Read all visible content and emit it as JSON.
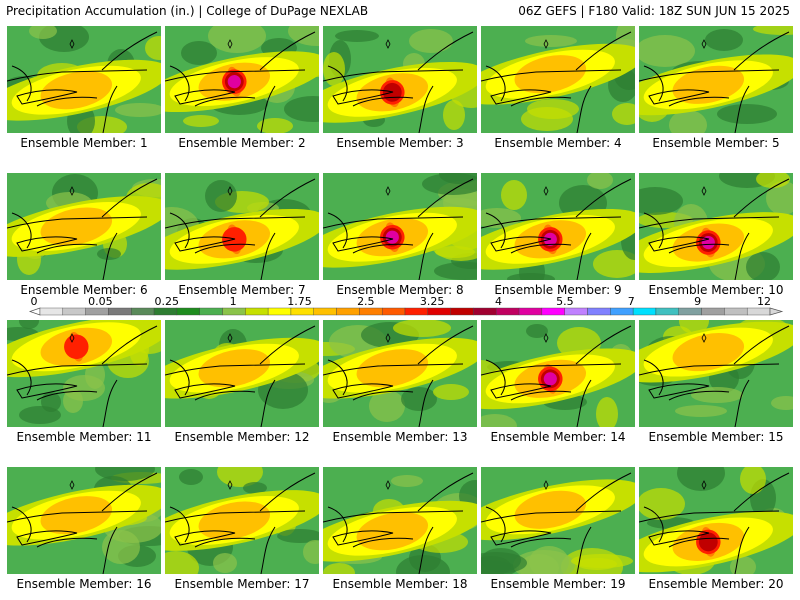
{
  "header": {
    "left_title": "Precipitation Accumulation (in.) | College of DuPage NEXLAB",
    "right_title": "06Z GEFS | F180 Valid: 18Z SUN JUN 15 2025"
  },
  "panels": [
    {
      "member": 1,
      "label": "Ensemble Member: 1",
      "peak": 2,
      "band_lat": 0.6
    },
    {
      "member": 2,
      "label": "Ensemble Member: 2",
      "peak": 6,
      "band_lat": 0.52
    },
    {
      "member": 3,
      "label": "Ensemble Member: 3",
      "peak": 4,
      "band_lat": 0.62
    },
    {
      "member": 4,
      "label": "Ensemble Member: 4",
      "peak": 2,
      "band_lat": 0.45
    },
    {
      "member": 5,
      "label": "Ensemble Member: 5",
      "peak": 1.75,
      "band_lat": 0.55
    },
    {
      "member": 6,
      "label": "Ensemble Member: 6",
      "peak": 1.5,
      "band_lat": 0.5
    },
    {
      "member": 7,
      "label": "Ensemble Member: 7",
      "peak": 3.25,
      "band_lat": 0.62
    },
    {
      "member": 8,
      "label": "Ensemble Member: 8",
      "peak": 5.5,
      "band_lat": 0.6
    },
    {
      "member": 9,
      "label": "Ensemble Member: 9",
      "peak": 5.5,
      "band_lat": 0.62
    },
    {
      "member": 10,
      "label": "Ensemble Member: 10",
      "peak": 5.5,
      "band_lat": 0.65
    },
    {
      "member": 11,
      "label": "Ensemble Member: 11",
      "peak": 3,
      "band_lat": 0.25
    },
    {
      "member": 12,
      "label": "Ensemble Member: 12",
      "peak": 2,
      "band_lat": 0.45
    },
    {
      "member": 13,
      "label": "Ensemble Member: 13",
      "peak": 1.75,
      "band_lat": 0.45
    },
    {
      "member": 14,
      "label": "Ensemble Member: 14",
      "peak": 5,
      "band_lat": 0.55
    },
    {
      "member": 15,
      "label": "Ensemble Member: 15",
      "peak": 1.5,
      "band_lat": 0.3
    },
    {
      "member": 16,
      "label": "Ensemble Member: 16",
      "peak": 2,
      "band_lat": 0.45
    },
    {
      "member": 17,
      "label": "Ensemble Member: 17",
      "peak": 1.5,
      "band_lat": 0.5
    },
    {
      "member": 18,
      "label": "Ensemble Member: 18",
      "peak": 2,
      "band_lat": 0.6
    },
    {
      "member": 19,
      "label": "Ensemble Member: 19",
      "peak": 2,
      "band_lat": 0.4
    },
    {
      "member": 20,
      "label": "Ensemble Member: 20",
      "peak": 4,
      "band_lat": 0.7
    }
  ],
  "colorbar": {
    "unit": "in.",
    "bins": [
      {
        "color": "#e6e6e6"
      },
      {
        "color": "#c8c8c8"
      },
      {
        "color": "#a0a0a0"
      },
      {
        "color": "#7a7a7a"
      },
      {
        "color": "#5a8a5a"
      },
      {
        "color": "#2e7d32"
      },
      {
        "color": "#1e8c1e"
      },
      {
        "color": "#4caf50"
      },
      {
        "color": "#8bc34a"
      },
      {
        "color": "#c6e000"
      },
      {
        "color": "#ffff00"
      },
      {
        "color": "#ffe000"
      },
      {
        "color": "#ffc000"
      },
      {
        "color": "#ffa000"
      },
      {
        "color": "#ff7f00"
      },
      {
        "color": "#ff5a00"
      },
      {
        "color": "#ff2000"
      },
      {
        "color": "#e00000"
      },
      {
        "color": "#c00000"
      },
      {
        "color": "#a00030"
      },
      {
        "color": "#c00060"
      },
      {
        "color": "#e000a0"
      },
      {
        "color": "#ff00ff"
      },
      {
        "color": "#c080ff"
      },
      {
        "color": "#8080ff"
      },
      {
        "color": "#40a0ff"
      },
      {
        "color": "#00e0ff"
      },
      {
        "color": "#40c0c0"
      },
      {
        "color": "#80a0a0"
      },
      {
        "color": "#a0a0a0"
      },
      {
        "color": "#c0c0c0"
      },
      {
        "color": "#d8d8d8"
      }
    ],
    "tick_labels": [
      {
        "text": "0",
        "value": 0
      },
      {
        "text": "0.05",
        "value": 0.05
      },
      {
        "text": "0.25",
        "value": 0.25
      },
      {
        "text": "1",
        "value": 1
      },
      {
        "text": "1.75",
        "value": 1.75
      },
      {
        "text": "2.5",
        "value": 2.5
      },
      {
        "text": "3.25",
        "value": 3.25
      },
      {
        "text": "4",
        "value": 4
      },
      {
        "text": "5.5",
        "value": 5.5
      },
      {
        "text": "7",
        "value": 7
      },
      {
        "text": "9",
        "value": 9
      },
      {
        "text": "12",
        "value": 12
      }
    ]
  }
}
